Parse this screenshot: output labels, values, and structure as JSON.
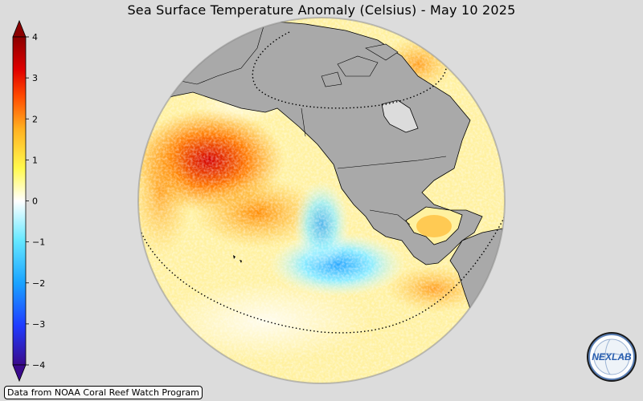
{
  "title": "Sea Surface Temperature Anomaly (Celsius) - May 10 2025",
  "credit": "Data from NOAA Coral Reef Watch Program",
  "logo_text": "NEXLAB",
  "colorbar": {
    "min": -4,
    "max": 4,
    "ticks": [
      "4",
      "3",
      "2",
      "1",
      "0",
      "−1",
      "−2",
      "−3",
      "−4"
    ],
    "colors": [
      "#3a0a8c",
      "#1f3cff",
      "#19a3ff",
      "#66e8ff",
      "#ffffff",
      "#fff94d",
      "#ffb020",
      "#ff4a00",
      "#e00000",
      "#8b0000"
    ]
  },
  "colors": {
    "background": "#dcdcdc",
    "land": "#a9a9a9",
    "ocean_neutral": "#fff6b0"
  }
}
